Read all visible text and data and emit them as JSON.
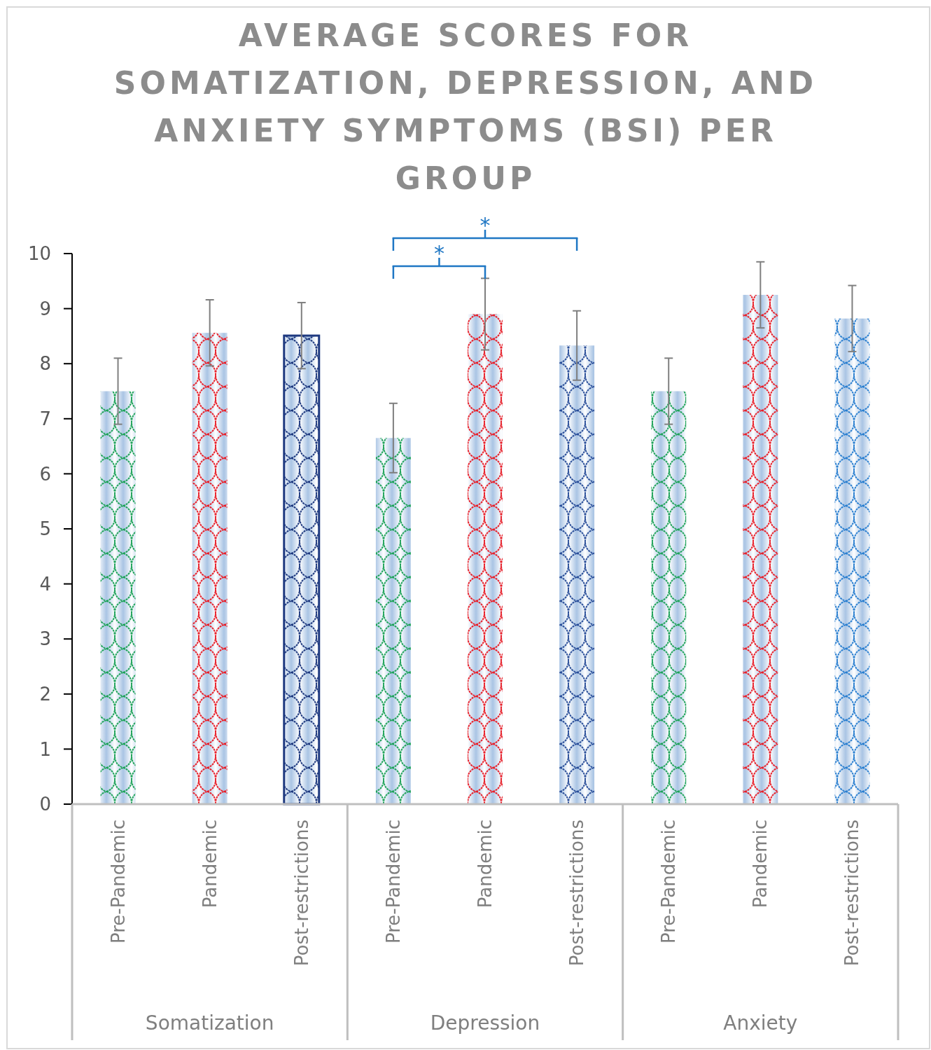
{
  "chart_data": {
    "type": "bar",
    "title": "AVERAGE SCORES FOR SOMATIZATION, DEPRESSION, AND ANXIETY SYMPTOMS (BSI) PER GROUP",
    "categories": [
      "Pre-Pandemic",
      "Pandemic",
      "Post-restrictions",
      "Pre-Pandemic",
      "Pandemic",
      "Post-restrictions",
      "Pre-Pandemic",
      "Pandemic",
      "Post-restrictions"
    ],
    "values": [
      7.5,
      8.56,
      8.51,
      6.65,
      8.9,
      8.33,
      7.5,
      9.25,
      8.82
    ],
    "errors": [
      0.6,
      0.6,
      0.6,
      0.63,
      0.65,
      0.63,
      0.6,
      0.6,
      0.6
    ],
    "colors": [
      "#1fa35a",
      "#e8202a",
      "#1f3a80",
      "#1fa35a",
      "#e8202a",
      "#2a4f9a",
      "#1fa35a",
      "#e8202a",
      "#2a7fd0"
    ],
    "ylim": [
      0,
      10
    ],
    "yticks": [
      0,
      1,
      2,
      3,
      4,
      5,
      6,
      7,
      8,
      9,
      10
    ],
    "annotations": [
      "Somatization",
      "Depression",
      "Anxiety",
      "*",
      "*"
    ]
  }
}
